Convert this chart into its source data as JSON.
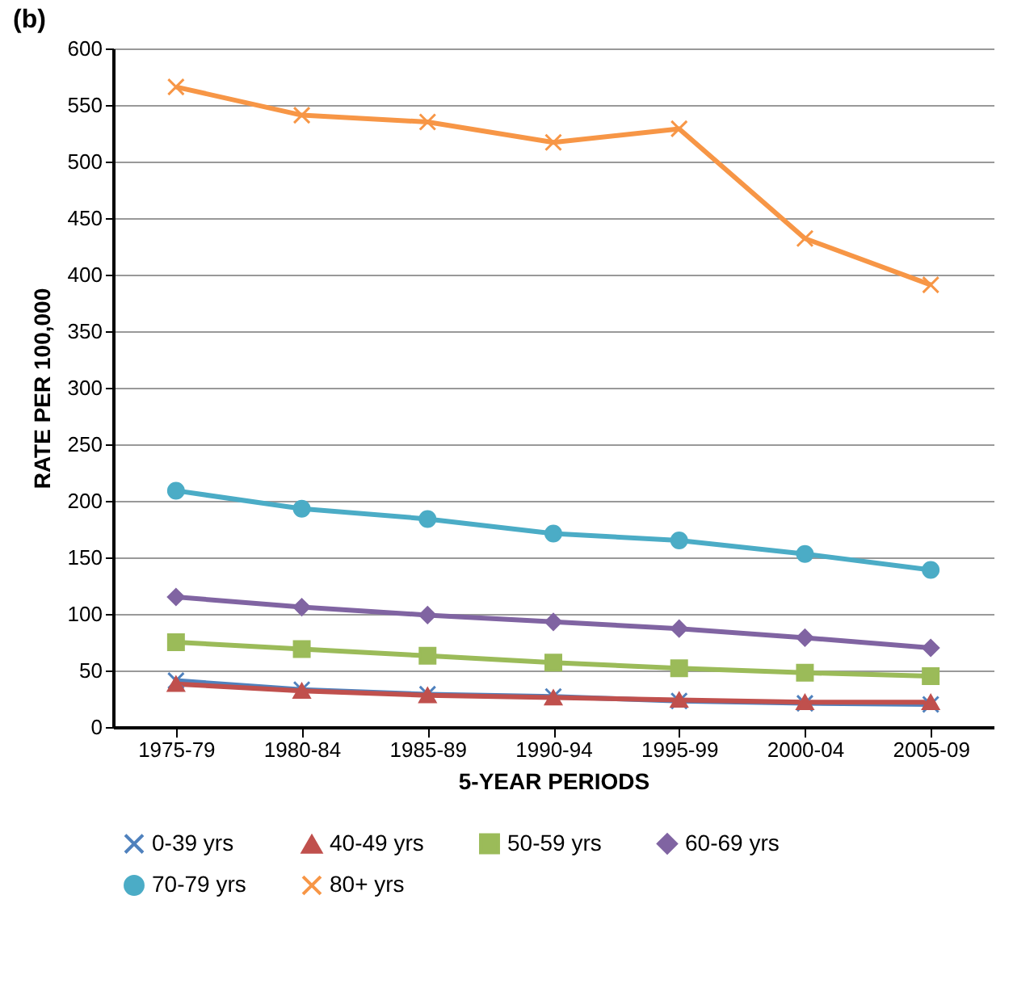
{
  "chart_data": {
    "type": "line",
    "title": "(b)",
    "xlabel": "5-YEAR PERIODS",
    "ylabel": "RATE PER 100,000",
    "categories": [
      "1975-79",
      "1980-84",
      "1985-89",
      "1990-94",
      "1995-99",
      "2000-04",
      "2005-09"
    ],
    "series": [
      {
        "name": "0-39 yrs",
        "color": "#4f81bd",
        "marker": "cross",
        "values": [
          41,
          33,
          29,
          27,
          23,
          21,
          20
        ]
      },
      {
        "name": "40-49 yrs",
        "color": "#c0504d",
        "marker": "triangle",
        "values": [
          38,
          32,
          28,
          26,
          24,
          22,
          22
        ]
      },
      {
        "name": "50-59 yrs",
        "color": "#9bbb59",
        "marker": "square",
        "values": [
          75,
          69,
          63,
          57,
          52,
          48,
          45
        ]
      },
      {
        "name": "60-69 yrs",
        "color": "#8064a2",
        "marker": "diamond",
        "values": [
          115,
          106,
          99,
          93,
          87,
          79,
          70
        ]
      },
      {
        "name": "70-79 yrs",
        "color": "#4bacc6",
        "marker": "circle",
        "values": [
          209,
          193,
          184,
          171,
          165,
          153,
          139
        ]
      },
      {
        "name": "80+ yrs",
        "color": "#f79646",
        "marker": "cross",
        "values": [
          566,
          541,
          535,
          517,
          529,
          432,
          391
        ]
      }
    ],
    "ylim": [
      0,
      600
    ],
    "yticks": [
      0,
      50,
      100,
      150,
      200,
      250,
      300,
      350,
      400,
      450,
      500,
      550,
      600
    ],
    "grid": "y",
    "legend": "bottom"
  }
}
